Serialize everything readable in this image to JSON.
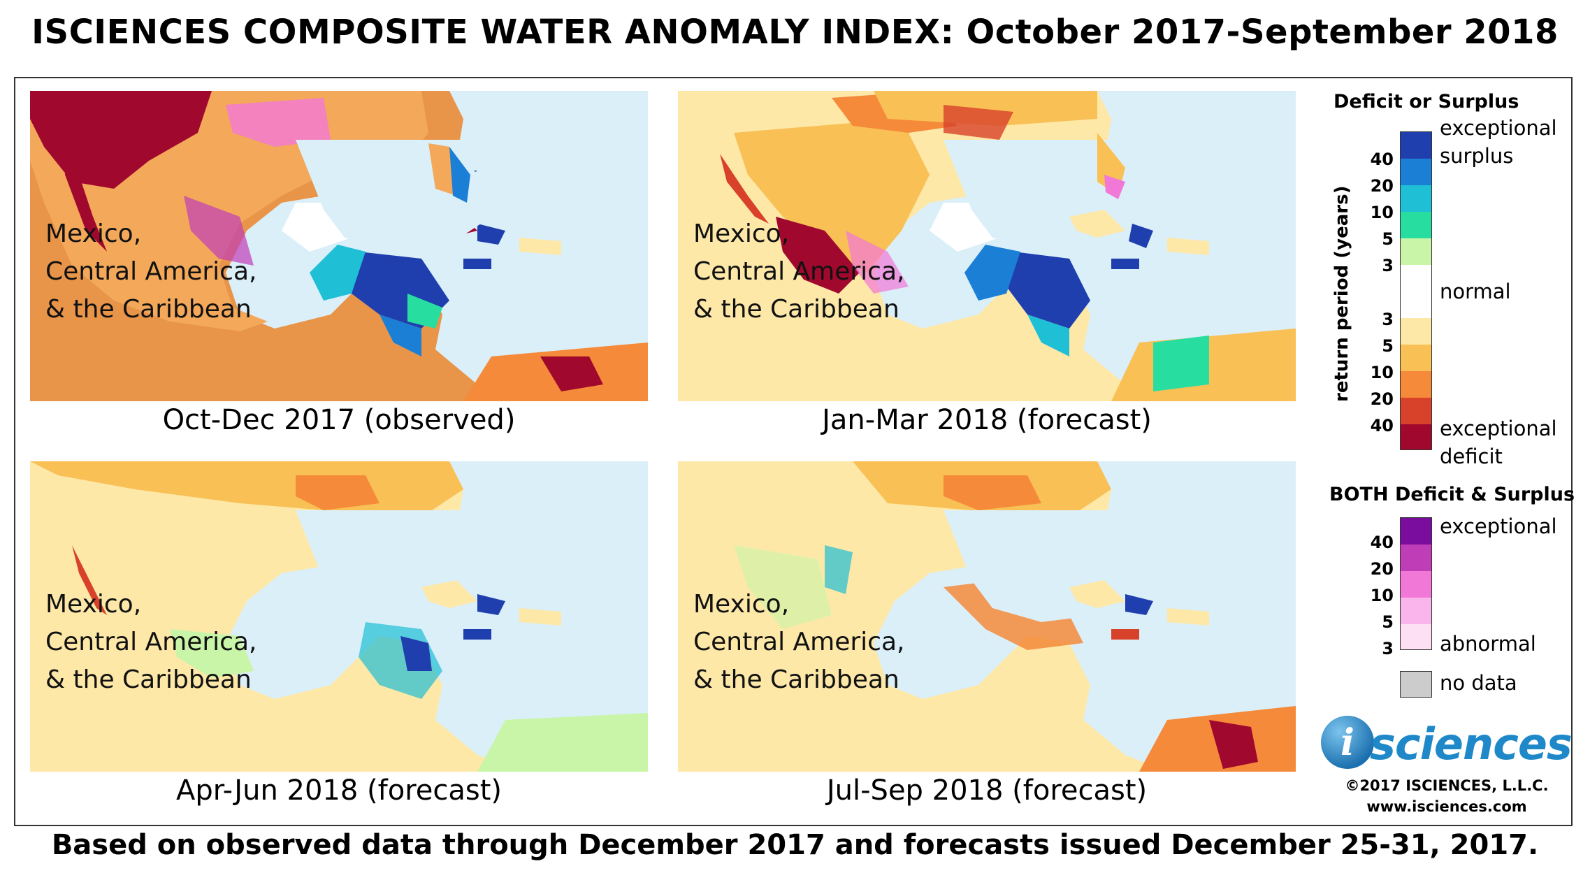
{
  "title": "ISCIENCES COMPOSITE WATER ANOMALY INDEX: October 2017-September 2018",
  "footer": "Based on observed data through December 2017 and forecasts issued December 25-31, 2017.",
  "region_label": [
    "Mexico,",
    "Central America,",
    "& the Caribbean"
  ],
  "panels": [
    {
      "caption": "Oct-Dec 2017 (observed)"
    },
    {
      "caption": "Jan-Mar 2018 (forecast)"
    },
    {
      "caption": "Apr-Jun 2018 (forecast)"
    },
    {
      "caption": "Jul-Sep 2018 (forecast)"
    }
  ],
  "legend": {
    "deficit_surplus_title": "Deficit or Surplus",
    "axis_label": "return period (years)",
    "surplus_ticks": [
      "40",
      "20",
      "10",
      "5",
      "3"
    ],
    "deficit_ticks": [
      "3",
      "5",
      "10",
      "20",
      "40"
    ],
    "exceptional_surplus": [
      "exceptional",
      "surplus"
    ],
    "normal": "normal",
    "exceptional_deficit": [
      "exceptional",
      "deficit"
    ],
    "both_title": "BOTH Deficit & Surplus",
    "both_ticks": [
      "40",
      "20",
      "10",
      "5",
      "3"
    ],
    "both_exceptional": "exceptional",
    "both_abnormal": "abnormal",
    "no_data": "no data",
    "colors": {
      "surplus": [
        "#1f3fae",
        "#1b7fd6",
        "#1fbfd6",
        "#27dea0",
        "#c9f5a8"
      ],
      "normal": "#ffffff",
      "deficit": [
        "#fde8a8",
        "#f9c055",
        "#f58a3a",
        "#d8412a",
        "#a0082e"
      ],
      "both": [
        "#7a0c9e",
        "#c03db8",
        "#f278d8",
        "#fab6ec",
        "#fde0f4"
      ],
      "no_data": "#cccccc"
    }
  },
  "logo": {
    "text": "sciences",
    "mark": "i"
  },
  "copyright": "©2017 ISCIENCES, L.L.C.",
  "website": "www.isciences.com"
}
